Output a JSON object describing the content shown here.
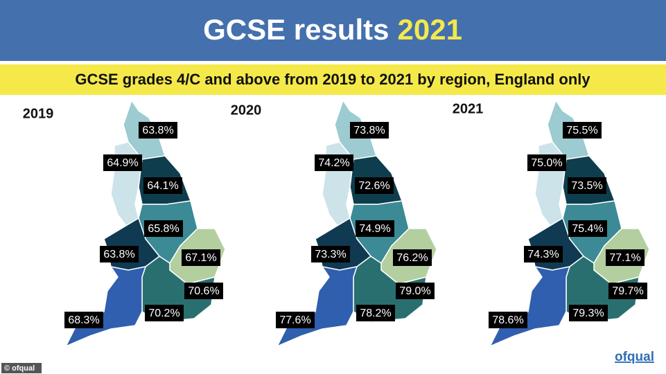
{
  "header": {
    "title": "GCSE results",
    "title_year": "2021"
  },
  "subtitle": "GCSE grades 4/C and above from 2019 to 2021 by region, England only",
  "maps": [
    {
      "year": "2019",
      "labels": [
        "63.8%",
        "64.9%",
        "64.1%",
        "65.8%",
        "63.8%",
        "67.1%",
        "70.6%",
        "70.2%",
        "68.3%"
      ]
    },
    {
      "year": "2020",
      "labels": [
        "73.8%",
        "74.2%",
        "72.6%",
        "74.9%",
        "73.3%",
        "76.2%",
        "79.0%",
        "78.2%",
        "77.6%"
      ]
    },
    {
      "year": "2021",
      "labels": [
        "75.5%",
        "75.0%",
        "73.5%",
        "75.4%",
        "74.3%",
        "77.1%",
        "79.7%",
        "79.3%",
        "78.6%"
      ]
    }
  ],
  "footer": {
    "credit": "© ofqual",
    "logo": "ofqual"
  }
}
